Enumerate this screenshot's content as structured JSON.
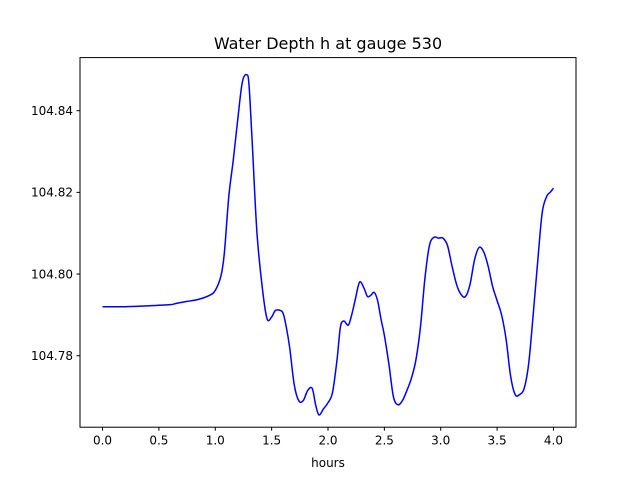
{
  "chart_data": {
    "type": "line",
    "title": "Water Depth h at gauge 530",
    "xlabel": "hours",
    "ylabel": "",
    "xlim": [
      -0.2,
      4.2
    ],
    "ylim": [
      104.7625,
      104.853
    ],
    "xticks": [
      0.0,
      0.5,
      1.0,
      1.5,
      2.0,
      2.5,
      3.0,
      3.5,
      4.0
    ],
    "xtick_labels": [
      "0.0",
      "0.5",
      "1.0",
      "1.5",
      "2.0",
      "2.5",
      "3.0",
      "3.5",
      "4.0"
    ],
    "yticks": [
      104.78,
      104.8,
      104.82,
      104.84
    ],
    "ytick_labels": [
      "104.78",
      "104.80",
      "104.82",
      "104.84"
    ],
    "grid": false,
    "legend": "none",
    "series": [
      {
        "color": "#0000ff",
        "x": [
          0.0,
          0.2,
          0.4,
          0.6,
          0.65,
          0.75,
          0.85,
          0.95,
          1.0,
          1.05,
          1.08,
          1.12,
          1.16,
          1.2,
          1.24,
          1.28,
          1.3,
          1.33,
          1.37,
          1.42,
          1.46,
          1.5,
          1.53,
          1.56,
          1.6,
          1.63,
          1.66,
          1.7,
          1.74,
          1.78,
          1.82,
          1.86,
          1.89,
          1.92,
          1.96,
          2.0,
          2.04,
          2.08,
          2.11,
          2.14,
          2.18,
          2.21,
          2.24,
          2.28,
          2.32,
          2.35,
          2.38,
          2.41,
          2.44,
          2.47,
          2.5,
          2.54,
          2.58,
          2.62,
          2.66,
          2.7,
          2.74,
          2.78,
          2.82,
          2.86,
          2.9,
          2.94,
          2.98,
          3.02,
          3.06,
          3.1,
          3.14,
          3.18,
          3.22,
          3.26,
          3.3,
          3.34,
          3.38,
          3.42,
          3.46,
          3.5,
          3.54,
          3.58,
          3.62,
          3.66,
          3.7,
          3.74,
          3.78,
          3.82,
          3.86,
          3.9,
          3.94,
          3.97,
          4.0
        ],
        "y": [
          104.792,
          104.792,
          104.7922,
          104.7925,
          104.7928,
          104.7933,
          104.7938,
          104.7948,
          104.796,
          104.7995,
          104.805,
          104.819,
          104.828,
          104.838,
          104.847,
          104.8488,
          104.846,
          104.831,
          104.81,
          104.796,
          104.789,
          104.7895,
          104.791,
          104.7912,
          104.7905,
          104.787,
          104.782,
          104.773,
          104.769,
          104.769,
          104.7715,
          104.772,
          104.768,
          104.7655,
          104.767,
          104.7685,
          104.771,
          104.779,
          104.787,
          104.7885,
          104.7875,
          104.79,
          104.7935,
          104.798,
          104.7965,
          104.7945,
          104.7948,
          104.7955,
          104.7935,
          104.789,
          104.785,
          104.778,
          104.77,
          104.768,
          104.769,
          104.7715,
          104.7745,
          104.779,
          104.787,
          104.799,
          104.807,
          104.809,
          104.8088,
          104.8088,
          104.807,
          104.802,
          104.7975,
          104.795,
          104.7945,
          104.7975,
          104.8035,
          104.8065,
          104.8055,
          104.802,
          104.797,
          104.7935,
          104.79,
          104.784,
          104.775,
          104.7705,
          104.7705,
          104.772,
          104.778,
          104.79,
          104.803,
          104.815,
          104.819,
          104.82,
          104.821
        ]
      }
    ]
  }
}
